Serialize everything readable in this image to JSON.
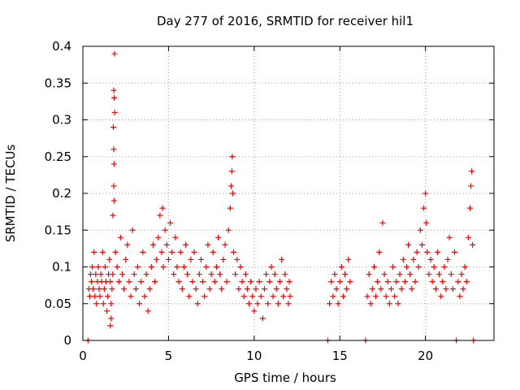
{
  "chart_data": {
    "type": "scatter",
    "title": "Day 277 of 2016, SRMTID for receiver hil1",
    "xlabel": "GPS time / hours",
    "ylabel": "SRMTID / TECUs",
    "xlim": [
      0,
      24
    ],
    "ylim": [
      0,
      0.4
    ],
    "x_ticks": [
      0,
      5,
      10,
      15,
      20
    ],
    "x_tick_labels": [
      "0",
      "5",
      "10",
      "15",
      "20"
    ],
    "y_ticks": [
      0,
      0.05,
      0.1,
      0.15,
      0.2,
      0.25,
      0.3,
      0.35,
      0.4
    ],
    "y_tick_labels": [
      "0",
      "0.05",
      "0.1",
      "0.15",
      "0.2",
      "0.25",
      "0.3",
      "0.35",
      "0.4"
    ],
    "grid": true,
    "marker": "+",
    "series_color": "#ff0000",
    "grid_color": "#a0a0a0",
    "series": [
      {
        "name": "SRMTID",
        "points": [
          [
            0.3,
            0.0
          ],
          [
            0.35,
            0.07
          ],
          [
            0.4,
            0.06
          ],
          [
            0.45,
            0.09
          ],
          [
            0.5,
            0.08
          ],
          [
            0.55,
            0.1
          ],
          [
            0.6,
            0.07
          ],
          [
            0.65,
            0.12
          ],
          [
            0.7,
            0.06
          ],
          [
            0.75,
            0.09
          ],
          [
            0.8,
            0.05
          ],
          [
            0.85,
            0.08
          ],
          [
            0.9,
            0.1
          ],
          [
            0.95,
            0.07
          ],
          [
            1.0,
            0.06
          ],
          [
            1.05,
            0.09
          ],
          [
            1.1,
            0.08
          ],
          [
            1.15,
            0.12
          ],
          [
            1.2,
            0.05
          ],
          [
            1.25,
            0.07
          ],
          [
            1.3,
            0.1
          ],
          [
            1.35,
            0.08
          ],
          [
            1.4,
            0.04
          ],
          [
            1.45,
            0.06
          ],
          [
            1.5,
            0.09
          ],
          [
            1.55,
            0.11
          ],
          [
            1.6,
            0.08
          ],
          [
            1.65,
            0.05
          ],
          [
            1.7,
            0.07
          ],
          [
            1.75,
            0.09
          ],
          [
            1.6,
            0.02
          ],
          [
            1.65,
            0.03
          ],
          [
            1.75,
            0.17
          ],
          [
            1.8,
            0.21
          ],
          [
            1.82,
            0.19
          ],
          [
            1.85,
            0.39
          ],
          [
            1.8,
            0.34
          ],
          [
            1.83,
            0.33
          ],
          [
            1.86,
            0.31
          ],
          [
            1.78,
            0.29
          ],
          [
            1.8,
            0.26
          ],
          [
            1.82,
            0.24
          ],
          [
            1.9,
            0.12
          ],
          [
            2.0,
            0.1
          ],
          [
            2.1,
            0.08
          ],
          [
            2.2,
            0.14
          ],
          [
            2.3,
            0.09
          ],
          [
            2.4,
            0.07
          ],
          [
            2.5,
            0.11
          ],
          [
            2.6,
            0.13
          ],
          [
            2.7,
            0.08
          ],
          [
            2.8,
            0.06
          ],
          [
            2.9,
            0.15
          ],
          [
            3.0,
            0.09
          ],
          [
            3.1,
            0.07
          ],
          [
            3.2,
            0.1
          ],
          [
            3.3,
            0.05
          ],
          [
            3.4,
            0.08
          ],
          [
            3.5,
            0.12
          ],
          [
            3.6,
            0.06
          ],
          [
            3.7,
            0.09
          ],
          [
            3.8,
            0.04
          ],
          [
            3.9,
            0.07
          ],
          [
            4.0,
            0.1
          ],
          [
            4.1,
            0.13
          ],
          [
            4.2,
            0.08
          ],
          [
            4.3,
            0.11
          ],
          [
            4.4,
            0.14
          ],
          [
            4.5,
            0.17
          ],
          [
            4.6,
            0.12
          ],
          [
            4.65,
            0.18
          ],
          [
            4.7,
            0.1
          ],
          [
            4.8,
            0.15
          ],
          [
            4.9,
            0.13
          ],
          [
            5.0,
            0.11
          ],
          [
            5.1,
            0.16
          ],
          [
            5.2,
            0.12
          ],
          [
            5.3,
            0.09
          ],
          [
            5.4,
            0.14
          ],
          [
            5.5,
            0.1
          ],
          [
            5.6,
            0.08
          ],
          [
            5.7,
            0.12
          ],
          [
            5.8,
            0.07
          ],
          [
            5.9,
            0.1
          ],
          [
            6.0,
            0.13
          ],
          [
            6.1,
            0.09
          ],
          [
            6.2,
            0.06
          ],
          [
            6.3,
            0.11
          ],
          [
            6.4,
            0.08
          ],
          [
            6.5,
            0.12
          ],
          [
            6.6,
            0.07
          ],
          [
            6.7,
            0.05
          ],
          [
            6.8,
            0.09
          ],
          [
            6.9,
            0.11
          ],
          [
            7.0,
            0.08
          ],
          [
            7.1,
            0.06
          ],
          [
            7.2,
            0.1
          ],
          [
            7.3,
            0.13
          ],
          [
            7.4,
            0.07
          ],
          [
            7.5,
            0.09
          ],
          [
            7.6,
            0.12
          ],
          [
            7.7,
            0.08
          ],
          [
            7.8,
            0.1
          ],
          [
            7.9,
            0.14
          ],
          [
            8.0,
            0.09
          ],
          [
            8.1,
            0.07
          ],
          [
            8.2,
            0.11
          ],
          [
            8.3,
            0.13
          ],
          [
            8.4,
            0.08
          ],
          [
            8.5,
            0.15
          ],
          [
            8.6,
            0.18
          ],
          [
            8.65,
            0.21
          ],
          [
            8.7,
            0.23
          ],
          [
            8.72,
            0.25
          ],
          [
            8.75,
            0.2
          ],
          [
            8.8,
            0.12
          ],
          [
            8.9,
            0.09
          ],
          [
            9.0,
            0.11
          ],
          [
            9.1,
            0.07
          ],
          [
            9.2,
            0.1
          ],
          [
            9.3,
            0.08
          ],
          [
            9.4,
            0.06
          ],
          [
            9.5,
            0.09
          ],
          [
            9.6,
            0.07
          ],
          [
            9.7,
            0.05
          ],
          [
            9.8,
            0.08
          ],
          [
            9.9,
            0.06
          ],
          [
            10.0,
            0.04
          ],
          [
            10.1,
            0.07
          ],
          [
            10.2,
            0.05
          ],
          [
            10.3,
            0.08
          ],
          [
            10.4,
            0.06
          ],
          [
            10.5,
            0.03
          ],
          [
            10.6,
            0.07
          ],
          [
            10.7,
            0.09
          ],
          [
            10.8,
            0.05
          ],
          [
            10.9,
            0.08
          ],
          [
            11.0,
            0.1
          ],
          [
            11.1,
            0.06
          ],
          [
            11.2,
            0.09
          ],
          [
            11.3,
            0.07
          ],
          [
            11.4,
            0.05
          ],
          [
            11.5,
            0.08
          ],
          [
            11.6,
            0.11
          ],
          [
            11.7,
            0.06
          ],
          [
            11.8,
            0.09
          ],
          [
            11.9,
            0.07
          ],
          [
            12.0,
            0.05
          ],
          [
            12.05,
            0.08
          ],
          [
            12.1,
            0.06
          ],
          [
            14.3,
            0.0
          ],
          [
            14.4,
            0.05
          ],
          [
            14.5,
            0.08
          ],
          [
            14.6,
            0.06
          ],
          [
            14.7,
            0.09
          ],
          [
            14.8,
            0.07
          ],
          [
            14.9,
            0.05
          ],
          [
            15.0,
            0.08
          ],
          [
            15.1,
            0.1
          ],
          [
            15.2,
            0.06
          ],
          [
            15.3,
            0.09
          ],
          [
            15.4,
            0.07
          ],
          [
            15.5,
            0.11
          ],
          [
            15.6,
            0.08
          ],
          [
            16.5,
            0.0
          ],
          [
            16.6,
            0.06
          ],
          [
            16.7,
            0.09
          ],
          [
            16.8,
            0.05
          ],
          [
            16.9,
            0.07
          ],
          [
            17.0,
            0.1
          ],
          [
            17.1,
            0.06
          ],
          [
            17.2,
            0.08
          ],
          [
            17.3,
            0.12
          ],
          [
            17.4,
            0.07
          ],
          [
            17.5,
            0.16
          ],
          [
            17.6,
            0.09
          ],
          [
            17.7,
            0.06
          ],
          [
            17.8,
            0.08
          ],
          [
            17.9,
            0.05
          ],
          [
            18.0,
            0.07
          ],
          [
            18.1,
            0.1
          ],
          [
            18.2,
            0.06
          ],
          [
            18.3,
            0.08
          ],
          [
            18.4,
            0.05
          ],
          [
            18.5,
            0.09
          ],
          [
            18.6,
            0.07
          ],
          [
            18.7,
            0.11
          ],
          [
            18.8,
            0.08
          ],
          [
            18.9,
            0.1
          ],
          [
            19.0,
            0.13
          ],
          [
            19.1,
            0.09
          ],
          [
            19.2,
            0.07
          ],
          [
            19.3,
            0.11
          ],
          [
            19.4,
            0.08
          ],
          [
            19.5,
            0.12
          ],
          [
            19.6,
            0.1
          ],
          [
            19.7,
            0.15
          ],
          [
            19.8,
            0.13
          ],
          [
            19.9,
            0.18
          ],
          [
            20.0,
            0.2
          ],
          [
            20.05,
            0.16
          ],
          [
            20.1,
            0.12
          ],
          [
            20.2,
            0.09
          ],
          [
            20.3,
            0.11
          ],
          [
            20.4,
            0.08
          ],
          [
            20.5,
            0.1
          ],
          [
            20.6,
            0.07
          ],
          [
            20.7,
            0.12
          ],
          [
            20.8,
            0.09
          ],
          [
            20.9,
            0.06
          ],
          [
            21.0,
            0.08
          ],
          [
            21.1,
            0.1
          ],
          [
            21.2,
            0.07
          ],
          [
            21.3,
            0.11
          ],
          [
            21.4,
            0.14
          ],
          [
            21.5,
            0.09
          ],
          [
            21.6,
            0.07
          ],
          [
            21.7,
            0.12
          ],
          [
            21.8,
            0.0
          ],
          [
            21.9,
            0.08
          ],
          [
            22.0,
            0.06
          ],
          [
            22.1,
            0.09
          ],
          [
            22.2,
            0.07
          ],
          [
            22.3,
            0.1
          ],
          [
            22.4,
            0.08
          ],
          [
            22.5,
            0.14
          ],
          [
            22.6,
            0.18
          ],
          [
            22.65,
            0.21
          ],
          [
            22.7,
            0.23
          ],
          [
            22.75,
            0.13
          ],
          [
            22.8,
            0.0
          ]
        ]
      }
    ]
  }
}
